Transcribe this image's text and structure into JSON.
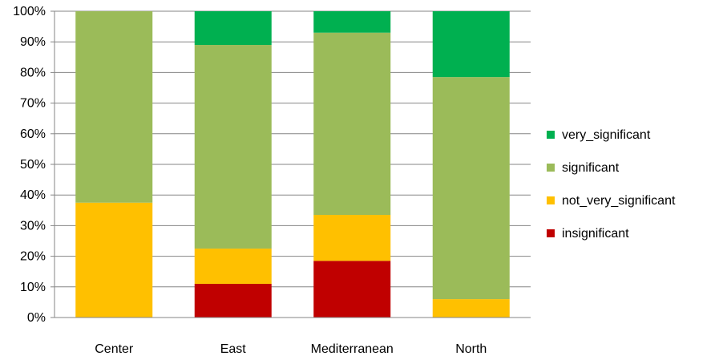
{
  "chart_data": {
    "type": "bar",
    "stacked": "percent",
    "categories": [
      "Center",
      "East",
      "Mediterranean",
      "North"
    ],
    "series": [
      {
        "name": "insignificant",
        "color": "#c00000",
        "values": [
          0,
          11,
          18.5,
          0
        ]
      },
      {
        "name": "not_very_significant",
        "color": "#ffc000",
        "values": [
          37.5,
          11.5,
          15,
          6
        ]
      },
      {
        "name": "significant",
        "color": "#9bbb59",
        "values": [
          62.5,
          66.5,
          59.5,
          72.5
        ]
      },
      {
        "name": "very_significant",
        "color": "#00b050",
        "values": [
          0,
          11,
          7,
          21.5
        ]
      }
    ],
    "ylim": [
      0,
      100
    ],
    "yticks": [
      "0%",
      "10%",
      "20%",
      "30%",
      "40%",
      "50%",
      "60%",
      "70%",
      "80%",
      "90%",
      "100%"
    ],
    "grid": true,
    "legend_position": "right",
    "legend_order": [
      "very_significant",
      "significant",
      "not_very_significant",
      "insignificant"
    ]
  }
}
